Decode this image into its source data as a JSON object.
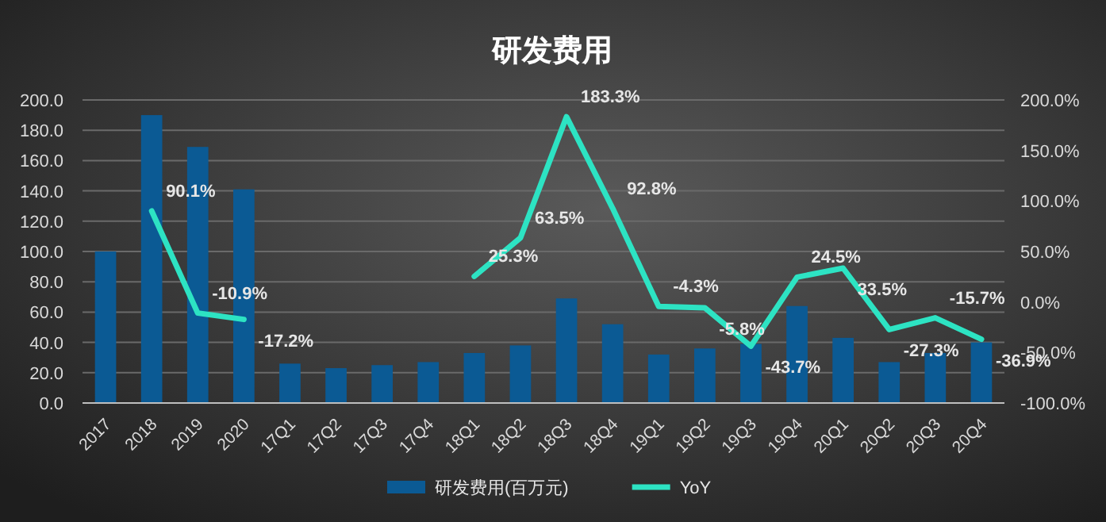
{
  "chart_data": {
    "type": "bar",
    "title": "研发费用",
    "categories": [
      "2017",
      "2018",
      "2019",
      "2020",
      "17Q1",
      "17Q2",
      "17Q3",
      "17Q4",
      "18Q1",
      "18Q2",
      "18Q3",
      "18Q4",
      "19Q1",
      "19Q2",
      "19Q3",
      "19Q4",
      "20Q1",
      "20Q2",
      "20Q3",
      "20Q4"
    ],
    "series": [
      {
        "name": "研发费用(百万元)",
        "color": "#0b5a94",
        "values": [
          100,
          190,
          169,
          141,
          26,
          23,
          25,
          27,
          33,
          38,
          69,
          52,
          32,
          36,
          39,
          64,
          43,
          27,
          33,
          40
        ]
      },
      {
        "name": "YoY",
        "type": "line",
        "axis": "y2",
        "color": "#2de3c3",
        "values": [
          null,
          90.1,
          -10.9,
          -17.2,
          null,
          null,
          null,
          null,
          25.3,
          63.5,
          183.3,
          92.8,
          -4.3,
          -5.8,
          -43.7,
          24.5,
          33.5,
          -27.3,
          -15.7,
          -36.9
        ],
        "value_labels": [
          null,
          "90.1%",
          "-10.9%",
          "-17.2%",
          null,
          null,
          null,
          null,
          "25.3%",
          "63.5%",
          "183.3%",
          "92.8%",
          "-4.3%",
          "-5.8%",
          "-43.7%",
          "24.5%",
          "33.5%",
          "-27.3%",
          "-15.7%",
          "-36.9%"
        ]
      }
    ],
    "ylim": [
      0,
      200
    ],
    "yticks": [
      {
        "value": 0,
        "label": "0.0"
      },
      {
        "value": 20,
        "label": "20.0"
      },
      {
        "value": 40,
        "label": "40.0"
      },
      {
        "value": 60,
        "label": "60.0"
      },
      {
        "value": 80,
        "label": "80.0"
      },
      {
        "value": 100,
        "label": "100.0"
      },
      {
        "value": 120,
        "label": "120.0"
      },
      {
        "value": 140,
        "label": "140.0"
      },
      {
        "value": 160,
        "label": "160.0"
      },
      {
        "value": 180,
        "label": "180.0"
      },
      {
        "value": 200,
        "label": "200.0"
      }
    ],
    "y2lim": [
      -100,
      200
    ],
    "y2ticks": [
      {
        "value": -100,
        "label": "-100.0%"
      },
      {
        "value": -50,
        "label": "-50.0%"
      },
      {
        "value": 0,
        "label": "0.0%"
      },
      {
        "value": 50,
        "label": "50.0%"
      },
      {
        "value": 100,
        "label": "100.0%"
      },
      {
        "value": 150,
        "label": "150.0%"
      },
      {
        "value": 200,
        "label": "200.0%"
      }
    ],
    "grid": "y",
    "legend": "bottom"
  }
}
